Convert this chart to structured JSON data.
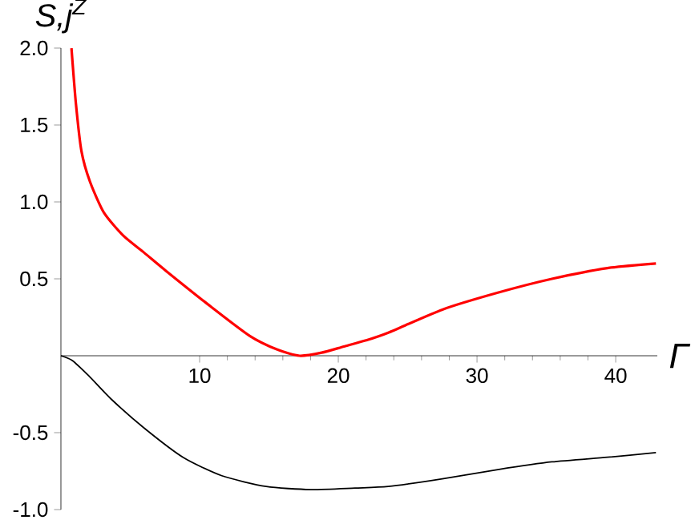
{
  "chart_data": {
    "type": "line",
    "xlabel": "Γ",
    "ylabel": "S,j$^{Z}$",
    "xlim": [
      0,
      43
    ],
    "ylim": [
      -1,
      2
    ],
    "xticks": [
      10,
      20,
      30,
      40
    ],
    "yticks": [
      {
        "value": -1,
        "label": "-1.0"
      },
      {
        "value": -0.5,
        "label": "-0.5"
      },
      {
        "value": 0.5,
        "label": "0.5"
      },
      {
        "value": 1,
        "label": "1.0"
      },
      {
        "value": 1.5,
        "label": "1.5"
      },
      {
        "value": 2,
        "label": "2.0"
      }
    ],
    "marker": "none",
    "line_style": "solid",
    "series": [
      {
        "color": "#ff0000",
        "x": [
          0.76,
          1.08,
          1.48,
          2.1,
          3.1,
          4.5,
          6.0,
          7.6,
          10.8,
          13.6,
          15.6,
          17.2,
          18.8,
          20.4,
          22,
          23.6,
          27.5,
          31.5,
          35.4,
          39.4,
          42.9
        ],
        "values": [
          2.0,
          1.64,
          1.33,
          1.13,
          0.93,
          0.78,
          0.67,
          0.55,
          0.32,
          0.13,
          0.04,
          0.0,
          0.02,
          0.06,
          0.1,
          0.15,
          0.3,
          0.41,
          0.5,
          0.57,
          0.6
        ]
      },
      {
        "color": "#000000",
        "x": [
          0,
          0.8,
          2,
          3.6,
          6,
          8.8,
          11.6,
          14.8,
          18,
          21.2,
          23.6,
          27.5,
          31.5,
          35.4,
          39.4,
          42.9
        ],
        "values": [
          0,
          -0.03,
          -0.13,
          -0.28,
          -0.47,
          -0.66,
          -0.78,
          -0.85,
          -0.87,
          -0.86,
          -0.85,
          -0.8,
          -0.74,
          -0.69,
          -0.66,
          -0.63
        ]
      }
    ]
  }
}
